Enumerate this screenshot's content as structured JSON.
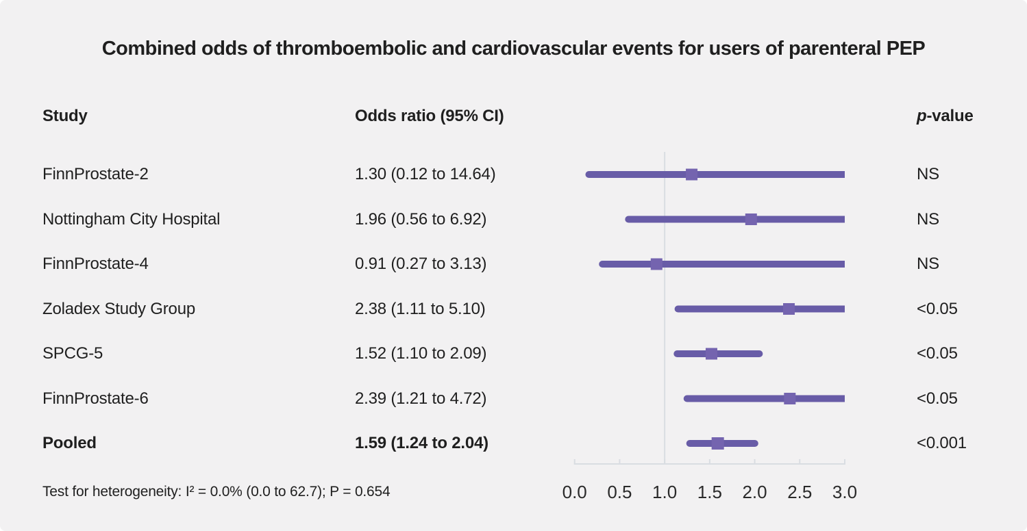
{
  "chart_data": {
    "type": "forest",
    "title": "Combined odds of thromboembolic and cardiovascular events for users of parenteral PEP",
    "columns": {
      "study": "Study",
      "odds_ratio": "Odds ratio (95% CI)",
      "pvalue_italic_part": "p",
      "pvalue_rest": "-value"
    },
    "rows": [
      {
        "study": "FinnProstate-2",
        "or": 1.3,
        "ci_low": 0.12,
        "ci_high": 14.64,
        "or_text": "1.30 (0.12 to 14.64)",
        "p": "NS",
        "pooled": false
      },
      {
        "study": "Nottingham City Hospital",
        "or": 1.96,
        "ci_low": 0.56,
        "ci_high": 6.92,
        "or_text": "1.96 (0.56 to 6.92)",
        "p": "NS",
        "pooled": false
      },
      {
        "study": "FinnProstate-4",
        "or": 0.91,
        "ci_low": 0.27,
        "ci_high": 3.13,
        "or_text": "0.91 (0.27 to 3.13)",
        "p": "NS",
        "pooled": false
      },
      {
        "study": "Zoladex Study Group",
        "or": 2.38,
        "ci_low": 1.11,
        "ci_high": 5.1,
        "or_text": "2.38 (1.11 to 5.10)",
        "p": "<0.05",
        "pooled": false
      },
      {
        "study": "SPCG-5",
        "or": 1.52,
        "ci_low": 1.1,
        "ci_high": 2.09,
        "or_text": "1.52 (1.10 to 2.09)",
        "p": "<0.05",
        "pooled": false
      },
      {
        "study": "FinnProstate-6",
        "or": 2.39,
        "ci_low": 1.21,
        "ci_high": 4.72,
        "or_text": "2.39 (1.21 to 4.72)",
        "p": "<0.05",
        "pooled": false
      },
      {
        "study": "Pooled",
        "or": 1.59,
        "ci_low": 1.24,
        "ci_high": 2.04,
        "or_text": "1.59 (1.24 to 2.04)",
        "p": "<0.001",
        "pooled": true
      }
    ],
    "axis": {
      "min": 0.0,
      "max": 3.0,
      "ticks": [
        0.0,
        0.5,
        1.0,
        1.5,
        2.0,
        2.5,
        3.0
      ],
      "tick_labels": [
        "0.0",
        "0.5",
        "1.0",
        "1.5",
        "2.0",
        "2.5",
        "3.0"
      ],
      "reference_line": 1.0,
      "grid": false
    },
    "footnote": "Test for heterogeneity: I² = 0.0% (0.0 to 62.7); P = 0.654",
    "colors": {
      "ci_line": "#685CA7",
      "marker": "#7464AF",
      "axis_line": "#D9DDE2",
      "background": "#F2F1F2",
      "text": "#1F1F1F",
      "tick_label": "#2A2A2A"
    }
  }
}
